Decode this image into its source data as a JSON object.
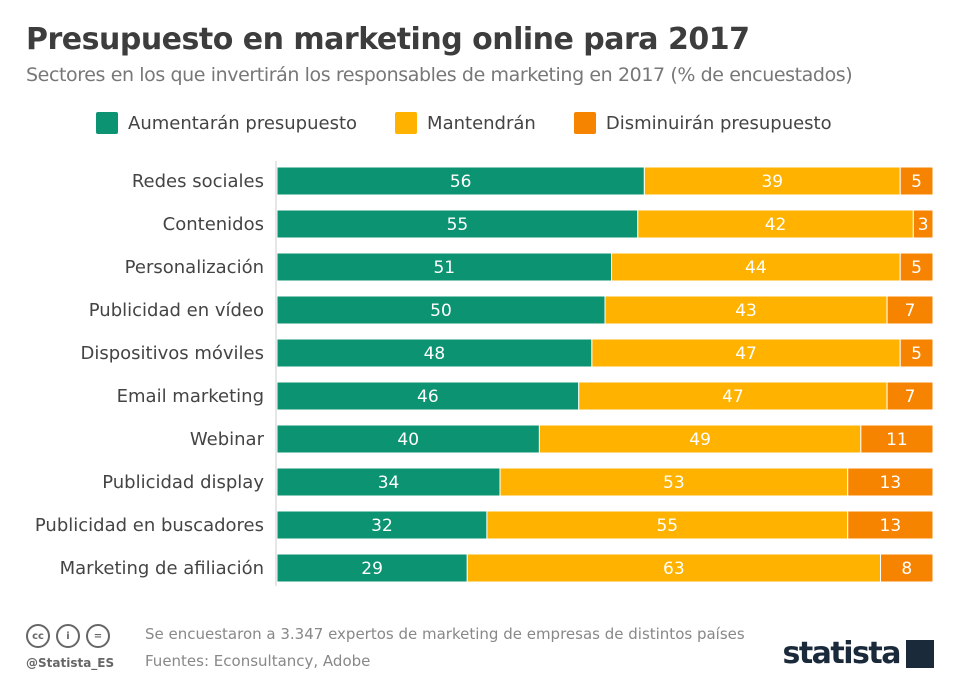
{
  "header": {
    "title": "Presupuesto en marketing online para 2017",
    "subtitle": "Sectores en los que invertirán los responsables de marketing en 2017 (% de encuestados)"
  },
  "chart_data": {
    "type": "bar",
    "orientation": "horizontal",
    "stacked": true,
    "title": "Presupuesto en marketing online para 2017",
    "subtitle": "Sectores en los que invertirán los responsables de marketing en 2017 (% de encuestados)",
    "categories": [
      "Redes sociales",
      "Contenidos",
      "Personalización",
      "Publicidad en vídeo",
      "Dispositivos móviles",
      "Email marketing",
      "Webinar",
      "Publicidad display",
      "Publicidad en buscadores",
      "Marketing de afiliación"
    ],
    "series": [
      {
        "name": "Aumentarán presupuesto",
        "color": "#0c9372",
        "values": [
          56,
          55,
          51,
          50,
          48,
          46,
          40,
          34,
          32,
          29
        ]
      },
      {
        "name": "Mantendrán",
        "color": "#ffb300",
        "values": [
          39,
          42,
          44,
          43,
          47,
          47,
          49,
          53,
          55,
          63
        ]
      },
      {
        "name": "Disminuirán presupuesto",
        "color": "#f78400",
        "values": [
          5,
          3,
          5,
          7,
          5,
          7,
          11,
          13,
          13,
          8
        ]
      }
    ],
    "xlim": [
      0,
      100
    ],
    "grid": false,
    "legend": "top",
    "data_labels": true
  },
  "footer": {
    "note": "Se encuestaron a 3.347 expertos de marketing de empresas de distintos países",
    "source": "Fuentes: Econsultancy, Adobe",
    "handle": "@Statista_ES",
    "logo": "statista",
    "cc_icons": [
      "cc",
      "by",
      "nd"
    ]
  }
}
